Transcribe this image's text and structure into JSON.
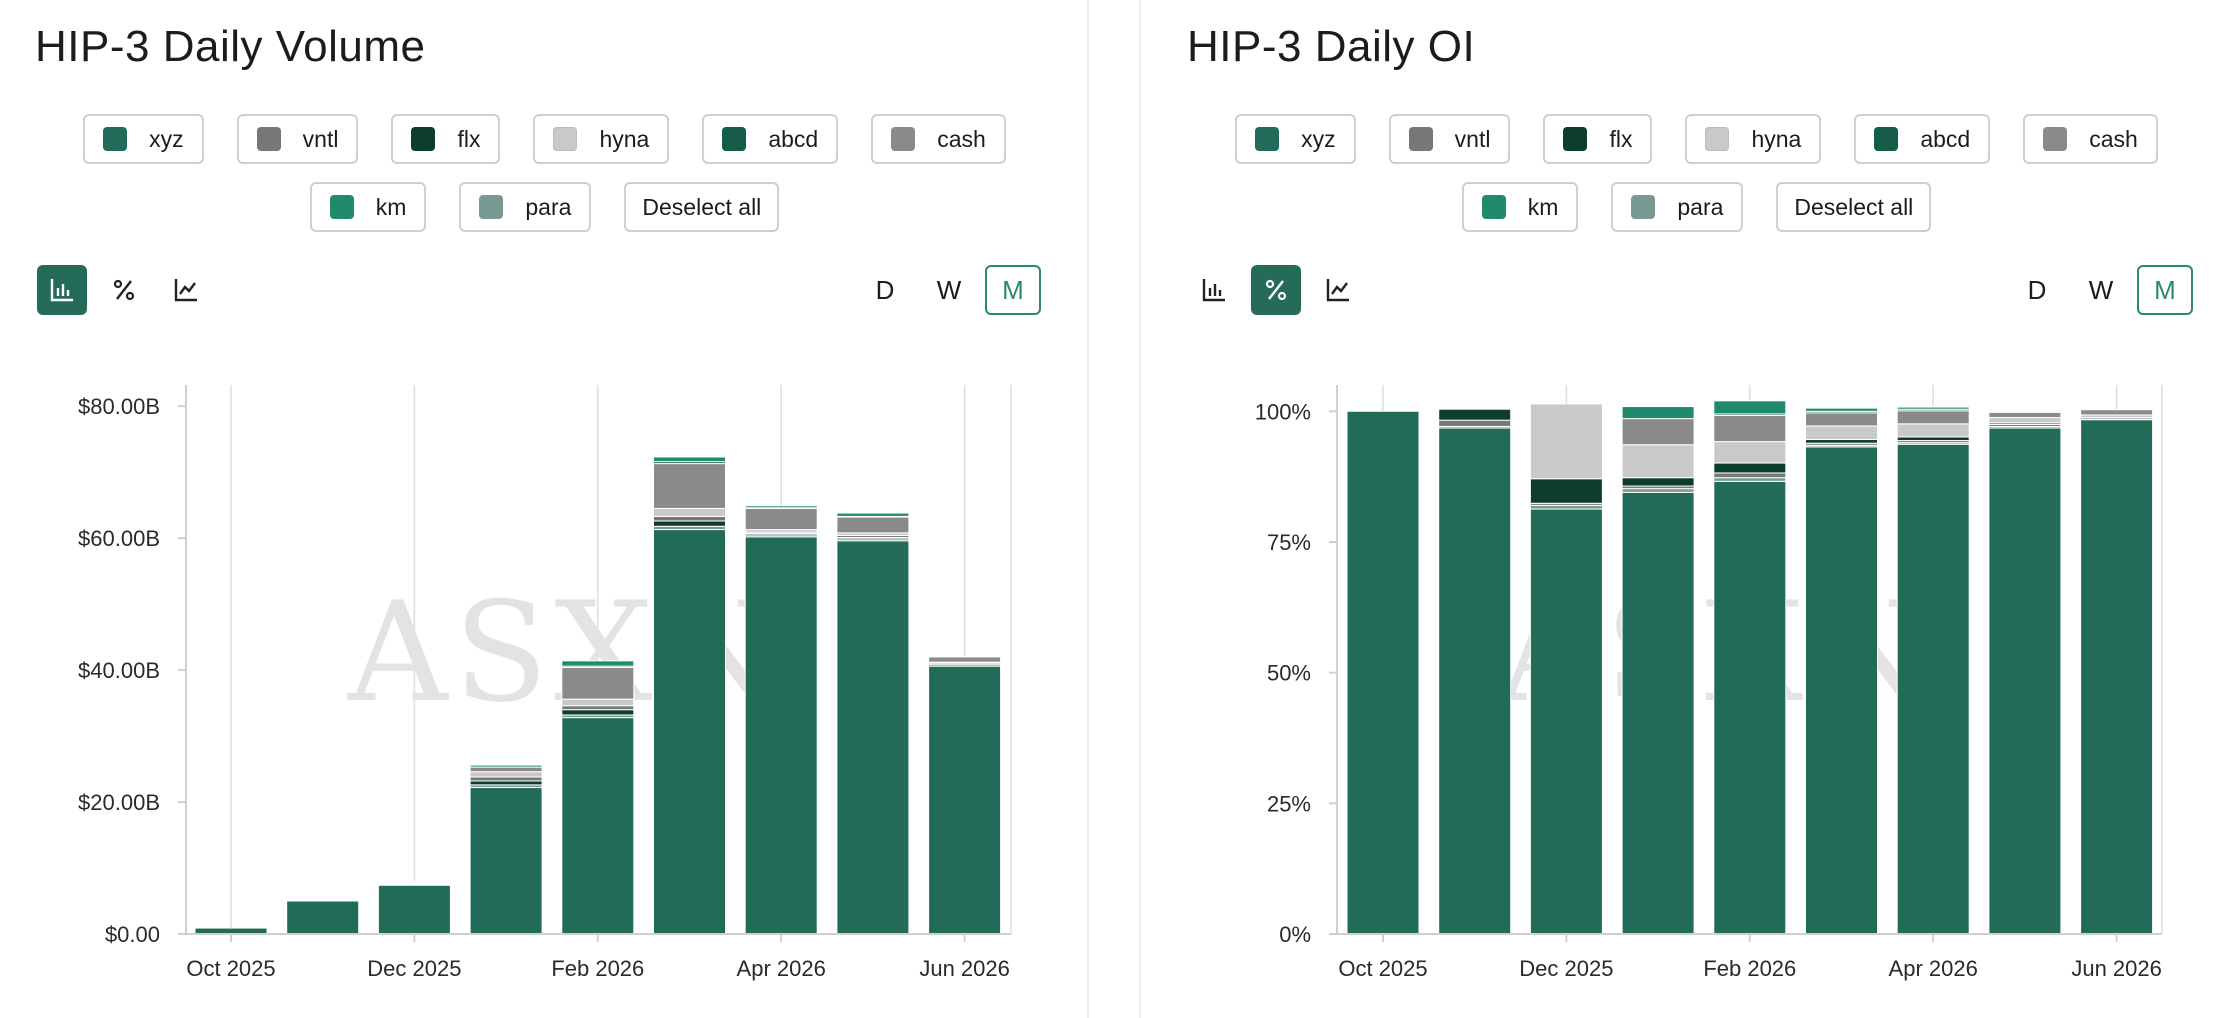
{
  "colors": {
    "xyz": "#236b59",
    "vntl": "#777777",
    "flx": "#0d3d2d",
    "hyna": "#c9c9c9",
    "abcd": "#155c4a",
    "cash": "#8a8a8a",
    "km": "#1f8a6c",
    "para": "#789a92",
    "active_bg": "#246b5a",
    "accent": "#2a8a6f"
  },
  "watermark": "ASXN",
  "legend": {
    "items": [
      {
        "key": "xyz",
        "label": "xyz"
      },
      {
        "key": "vntl",
        "label": "vntl"
      },
      {
        "key": "flx",
        "label": "flx"
      },
      {
        "key": "hyna",
        "label": "hyna"
      },
      {
        "key": "abcd",
        "label": "abcd"
      },
      {
        "key": "cash",
        "label": "cash"
      },
      {
        "key": "km",
        "label": "km"
      },
      {
        "key": "para",
        "label": "para"
      }
    ],
    "deselect_label": "Deselect all"
  },
  "view_icons": [
    "bar-chart-icon",
    "percent-icon",
    "line-chart-icon"
  ],
  "periods": [
    "D",
    "W",
    "M"
  ],
  "active_period": "M",
  "chart_data": [
    {
      "type": "bar",
      "stacked": true,
      "title": "HIP-3 Daily Volume",
      "active_view": "bar-chart-icon",
      "y_ticks": [
        "$0.00",
        "$20.00B",
        "$40.00B",
        "$60.00B",
        "$80.00B"
      ],
      "ylim": [
        0,
        82
      ],
      "unit": "B",
      "x_tick_labels": [
        "Oct 2025",
        "Dec 2025",
        "Feb 2026",
        "Apr 2026",
        "Jun 2026"
      ],
      "grid": "vertical",
      "legend_placement": "top",
      "categories": [
        "Oct 2025",
        "Nov 2025",
        "Dec 2025",
        "Jan 2026",
        "Feb 2026",
        "Mar 2026",
        "Apr 2026",
        "May 2026",
        "Jun 2026"
      ],
      "series": [
        {
          "name": "xyz",
          "values": [
            0.9,
            5.0,
            7.4,
            22.2,
            32.8,
            61.3,
            60.2,
            59.6,
            40.6
          ]
        },
        {
          "name": "para",
          "values": [
            0,
            0,
            0.1,
            0.4,
            0.4,
            0.5,
            0.3,
            0.3,
            0.3
          ]
        },
        {
          "name": "flx",
          "values": [
            0,
            0,
            0.1,
            0.6,
            0.8,
            0.8,
            0.2,
            0.2,
            0
          ]
        },
        {
          "name": "vntl",
          "values": [
            0,
            0,
            0.1,
            0.6,
            0.6,
            0.7,
            0.2,
            0.3,
            0.2
          ]
        },
        {
          "name": "hyna",
          "values": [
            0,
            0,
            0.1,
            0.8,
            1.0,
            1.2,
            0.4,
            0.4,
            0.1
          ]
        },
        {
          "name": "cash",
          "values": [
            0,
            0,
            0.1,
            0.7,
            4.8,
            6.8,
            3.2,
            2.4,
            0.8
          ]
        },
        {
          "name": "abcd",
          "values": [
            0,
            0,
            0,
            0,
            0.2,
            0.3,
            0.1,
            0.1,
            0
          ]
        },
        {
          "name": "km",
          "values": [
            0,
            0,
            0,
            0.3,
            0.8,
            0.7,
            0.3,
            0.5,
            0
          ]
        }
      ]
    },
    {
      "type": "bar",
      "stacked": true,
      "percent": true,
      "title": "HIP-3 Daily OI",
      "active_view": "percent-icon",
      "y_ticks": [
        "0%",
        "25%",
        "50%",
        "75%",
        "100%"
      ],
      "ylim": [
        0,
        103.5
      ],
      "x_tick_labels": [
        "Oct 2025",
        "Dec 2025",
        "Feb 2026",
        "Apr 2026",
        "Jun 2026"
      ],
      "grid": "vertical",
      "legend_placement": "top",
      "categories": [
        "Oct 2025",
        "Nov 2025",
        "Dec 2025",
        "Jan 2026",
        "Feb 2026",
        "Mar 2026",
        "Apr 2026",
        "May 2026",
        "Jun 2026"
      ],
      "series": [
        {
          "name": "xyz",
          "values": [
            100,
            96.8,
            81.3,
            84.5,
            86.6,
            93.2,
            93.7,
            96.8,
            98.4
          ]
        },
        {
          "name": "para",
          "values": [
            0,
            0.3,
            0.7,
            0.7,
            0.7,
            0.3,
            0.3,
            0.3,
            0.1
          ]
        },
        {
          "name": "vntl",
          "values": [
            0,
            1.2,
            0.4,
            0.5,
            0.9,
            0.4,
            0.4,
            0.4,
            0.3
          ]
        },
        {
          "name": "flx",
          "values": [
            0,
            2.1,
            4.7,
            1.6,
            1.9,
            0.7,
            0.7,
            0.3,
            0
          ]
        },
        {
          "name": "hyna",
          "values": [
            0,
            0,
            14.3,
            6.3,
            4.1,
            2.6,
            2.5,
            1.0,
            0.5
          ]
        },
        {
          "name": "cash",
          "values": [
            0,
            0,
            0,
            5.0,
            5.0,
            2.5,
            2.5,
            1.0,
            1.0
          ]
        },
        {
          "name": "abcd",
          "values": [
            0,
            0,
            0,
            0,
            0.3,
            0.3,
            0.3,
            0.2,
            0
          ]
        },
        {
          "name": "km",
          "values": [
            0,
            0,
            0,
            2.3,
            2.5,
            0.6,
            0.4,
            0.2,
            0
          ]
        }
      ]
    }
  ]
}
